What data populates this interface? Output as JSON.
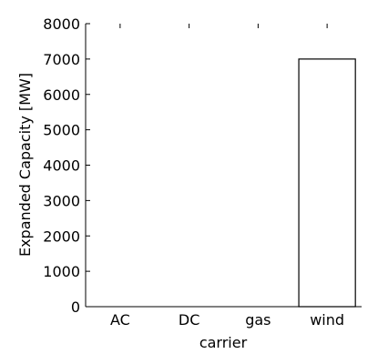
{
  "chart_data": {
    "type": "bar",
    "categories": [
      "AC",
      "DC",
      "gas",
      "wind"
    ],
    "values": [
      0,
      0,
      0,
      7000
    ],
    "xlabel": "carrier",
    "ylabel": "Expanded Capacity [MW]",
    "ylim": [
      0,
      8000
    ],
    "yticks": [
      0,
      1000,
      2000,
      3000,
      4000,
      5000,
      6000,
      7000,
      8000
    ],
    "grid": false,
    "legend": "none",
    "colors": {
      "axis": "#000000",
      "bar_edge": "#000000",
      "bar_fill": "#ffffff",
      "background": "#ffffff"
    }
  }
}
